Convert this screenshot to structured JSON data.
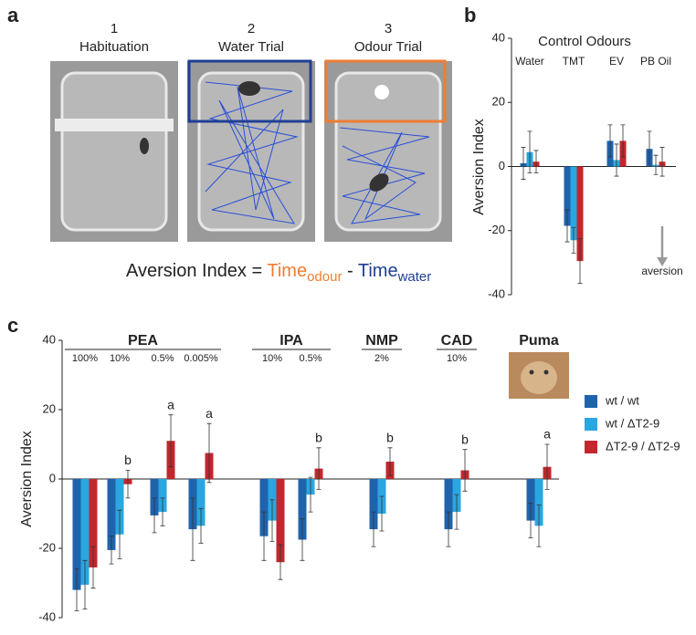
{
  "panel_labels": [
    "a",
    "b",
    "c"
  ],
  "panel_a": {
    "trials": [
      {
        "number": "1",
        "name": "Habituation"
      },
      {
        "number": "2",
        "name": "Water Trial"
      },
      {
        "number": "3",
        "name": "Odour Trial"
      }
    ],
    "formula": {
      "lhs": "Aversion Index =",
      "term1": "Time",
      "sub1": "odour",
      "minus": "-",
      "term2": "Time",
      "sub2": "water"
    }
  },
  "chart_data": [
    {
      "type": "bar",
      "title": "Control Odours",
      "ylabel": "Aversion Index",
      "annotation": "aversion",
      "categories": [
        "Water",
        "TMT",
        "EV",
        "PB Oil"
      ],
      "ylim": [
        -40,
        40
      ],
      "yticks": [
        -40,
        -20,
        0,
        20,
        40
      ],
      "series": [
        {
          "name": "wt / wt",
          "color": "#1f63ad",
          "values": [
            1,
            -18.5,
            8,
            5.5
          ],
          "errors": [
            5,
            5,
            5,
            5.5
          ]
        },
        {
          "name": "wt / ΔT2-9",
          "color": "#2aa6e0",
          "values": [
            4.5,
            -23,
            2,
            0.5
          ],
          "errors": [
            6.5,
            4,
            5,
            3
          ]
        },
        {
          "name": "ΔT2-9 / ΔT2-9",
          "color": "#c1272d",
          "values": [
            1.5,
            -29.5,
            8,
            1.5
          ],
          "errors": [
            3.5,
            7,
            5,
            4.5
          ]
        }
      ]
    },
    {
      "type": "bar",
      "ylabel": "Aversion Index",
      "groups": [
        "PEA",
        "PEA",
        "PEA",
        "PEA",
        "IPA",
        "IPA",
        "NMP",
        "CAD",
        "Puma"
      ],
      "categories": [
        "100%",
        "10%",
        "0.5%",
        "0.005%",
        "10%",
        "0.5%",
        "2%",
        "10%",
        null
      ],
      "letters": [
        null,
        "b",
        "a",
        "a",
        null,
        "b",
        "b",
        "b",
        "a"
      ],
      "ylim": [
        -40,
        40
      ],
      "yticks": [
        -40,
        -20,
        0,
        20,
        40
      ],
      "series": [
        {
          "name": "wt / wt",
          "color": "#1f63ad",
          "values": [
            -32,
            -20.5,
            -10.5,
            -14.5,
            -16.5,
            -17.5,
            -14.5,
            -14.5,
            -12
          ],
          "errors": [
            6,
            4,
            5,
            9,
            7,
            6,
            5,
            5,
            5
          ]
        },
        {
          "name": "wt / ΔT2-9",
          "color": "#2aa6e0",
          "values": [
            -30.5,
            -16,
            -9.5,
            -13.5,
            -12,
            -4.5,
            -10,
            -9.5,
            -13.5
          ],
          "errors": [
            7,
            7,
            4,
            5,
            6,
            5,
            5,
            5,
            6
          ]
        },
        {
          "name": "ΔT2-9 / ΔT2-9",
          "color": "#c1272d",
          "values": [
            -25.5,
            -1.5,
            11,
            7.5,
            -24,
            3,
            5,
            2.5,
            3.5
          ],
          "errors": [
            6,
            4,
            7.5,
            8.5,
            5,
            6,
            4,
            6,
            6.5
          ]
        }
      ]
    }
  ]
}
